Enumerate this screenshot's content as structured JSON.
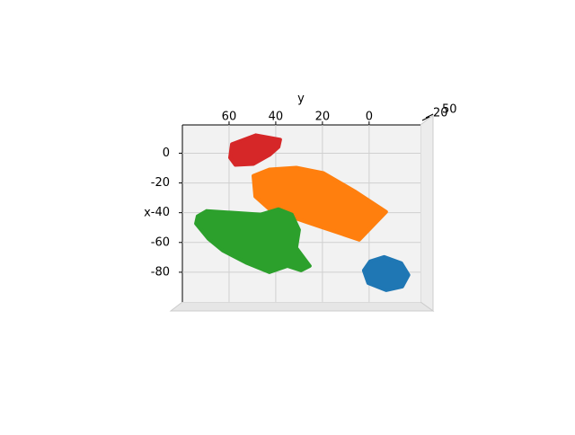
{
  "chart_data": {
    "type": "scatter3d",
    "xlabel": "x",
    "ylabel": "y",
    "ylim": [
      80,
      -22
    ],
    "yticks": [
      60,
      40,
      20,
      0
    ],
    "xlim": [
      19,
      -100
    ],
    "xticks": [
      0,
      -20,
      -40,
      -60,
      -80
    ],
    "zticks": [
      20,
      50
    ],
    "grid": true,
    "series": [
      {
        "color": "#d62728",
        "y": [
          58.8,
          48.5,
          38.1,
          38.8,
          42.7,
          49.6,
          57.3,
          59.6
        ],
        "x": [
          6.1,
          12.1,
          9.1,
          4.2,
          -1.2,
          -7.3,
          -7.9,
          -3.0
        ]
      },
      {
        "color": "#ff7f0e",
        "y": [
          49.6,
          42.7,
          31.2,
          19.6,
          6.2,
          -7.3,
          4.2,
          27.3,
          42.7,
          48.8
        ],
        "x": [
          -15.2,
          -10.9,
          -9.7,
          -13.3,
          -25.5,
          -39.4,
          -58.2,
          -46.1,
          -37.6,
          -29.1
        ]
      },
      {
        "color": "#2ca02c",
        "y": [
          73.5,
          69.6,
          58.1,
          46.5,
          38.8,
          33.1,
          30.0,
          31.2,
          25.4,
          29.2,
          35.0,
          42.7,
          52.3,
          62.7,
          68.8,
          74.2
        ],
        "x": [
          -42.4,
          -38.8,
          -40.0,
          -41.2,
          -37.6,
          -41.2,
          -51.5,
          -63.6,
          -75.8,
          -78.8,
          -75.8,
          -80.0,
          -73.9,
          -65.5,
          -57.6,
          -47.3
        ]
      },
      {
        "color": "#1f77b4",
        "y": [
          2.3,
          -0.4,
          -6.5,
          -13.8,
          -16.9,
          -14.2,
          -7.3,
          0.4
        ],
        "x": [
          -78.8,
          -72.7,
          -69.7,
          -73.9,
          -81.8,
          -89.7,
          -92.1,
          -87.3
        ]
      }
    ]
  }
}
